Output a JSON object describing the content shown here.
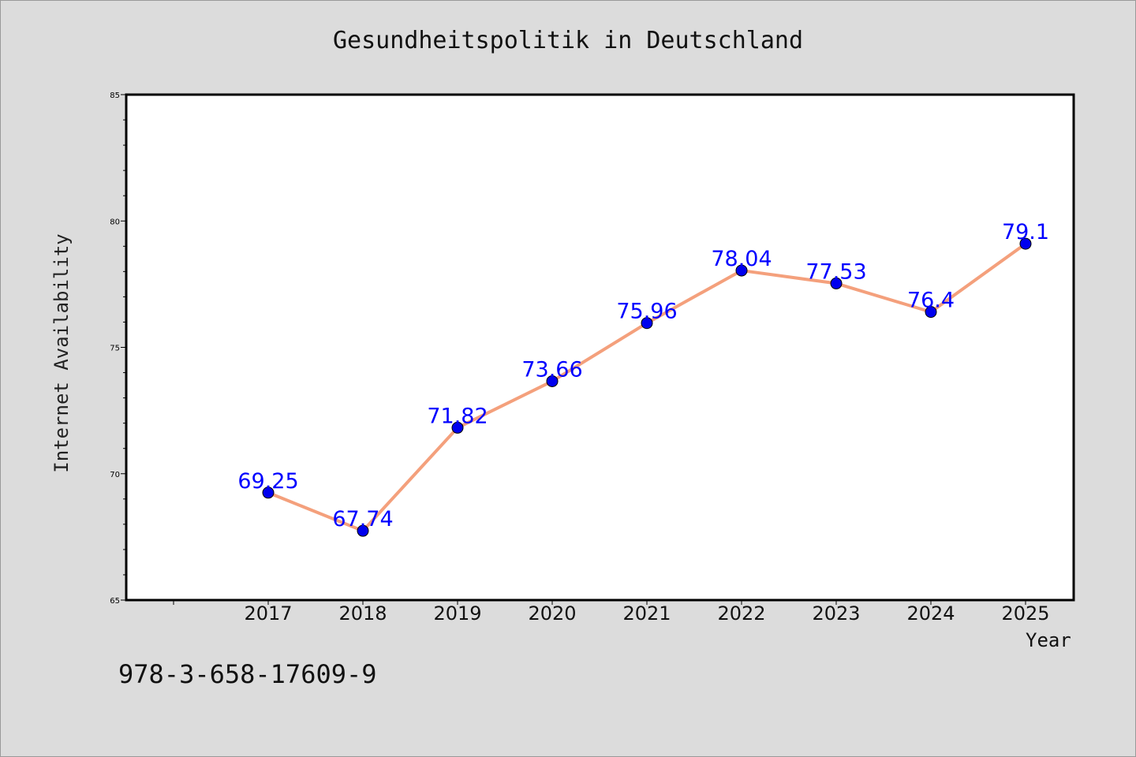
{
  "chart_data": {
    "type": "line",
    "title": "Gesundheitspolitik in Deutschland",
    "xlabel": "Year",
    "ylabel": "Internet Availability",
    "x": [
      "2017",
      "2018",
      "2019",
      "2020",
      "2021",
      "2022",
      "2023",
      "2024",
      "2025"
    ],
    "series": [
      {
        "values": [
          69.25,
          67.74,
          71.82,
          73.66,
          75.96,
          78.04,
          77.53,
          76.4,
          79.1
        ],
        "labels": [
          "69.25",
          "67.74",
          "71.82",
          "73.66",
          "75.96",
          "78.04",
          "77.53",
          "76.4",
          "79.1"
        ],
        "line_color": "#f4a07c",
        "marker_color": "#0000ee",
        "label_color": "#0000ff"
      }
    ],
    "ylim": [
      65,
      85
    ],
    "yticks": [
      "65",
      "70",
      "75",
      "80",
      "85"
    ],
    "grid": false
  },
  "footer": {
    "code": "978-3-658-17609-9"
  }
}
